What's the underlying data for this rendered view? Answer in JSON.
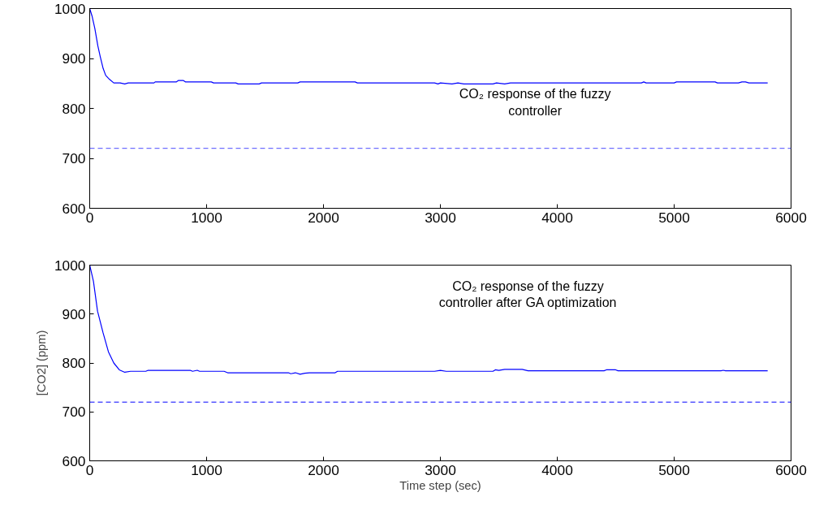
{
  "chart_data": [
    {
      "type": "line",
      "annotations": [
        "CO₂ response of the fuzzy controller"
      ],
      "xlim": [
        0,
        6000
      ],
      "ylim": [
        600,
        1000
      ],
      "xticks": [
        0,
        1000,
        2000,
        3000,
        4000,
        5000,
        6000
      ],
      "yticks": [
        600,
        700,
        800,
        900,
        1000
      ],
      "grid": false,
      "line_style": "solid",
      "series": [
        {
          "color": "#0000ff",
          "x": [
            0,
            20,
            44,
            70,
            90,
            115,
            137,
            170,
            206,
            260,
            300,
            330,
            550,
            560,
            740,
            760,
            800,
            820,
            1040,
            1060,
            1250,
            1270,
            1450,
            1470,
            1780,
            1800,
            2270,
            2290,
            2950,
            2980,
            3000,
            3100,
            3150,
            3200,
            3250,
            3450,
            3480,
            3550,
            3600,
            3620,
            4720,
            4740,
            4760,
            5000,
            5020,
            5350,
            5370,
            5550,
            5580,
            5610,
            5640,
            5800
          ],
          "values": [
            1000,
            985,
            960,
            925,
            904,
            880,
            866,
            858,
            851,
            851,
            849,
            851,
            851,
            853,
            853,
            856,
            856,
            853,
            853,
            851,
            851,
            849,
            849,
            851,
            851,
            853,
            853,
            851,
            851,
            849,
            851,
            849,
            851,
            849,
            849,
            849,
            851,
            849,
            851,
            851,
            851,
            853,
            851,
            851,
            853,
            853,
            851,
            851,
            853,
            853,
            851,
            851
          ]
        }
      ],
      "ref_lines": [
        {
          "axis": "y",
          "value": 720,
          "color": "#4d4dff",
          "line_style": "dashed"
        }
      ]
    },
    {
      "type": "line",
      "xlabel": "Time step (sec)",
      "ylabel": "[CO2] (ppm)",
      "annotations": [
        "CO₂ response of the fuzzy controller after GA optimization"
      ],
      "xlim": [
        0,
        6000
      ],
      "ylim": [
        600,
        1000
      ],
      "xticks": [
        0,
        1000,
        2000,
        3000,
        4000,
        5000,
        6000
      ],
      "yticks": [
        600,
        700,
        800,
        900,
        1000
      ],
      "grid": false,
      "line_style": "solid",
      "series": [
        {
          "color": "#0000ff",
          "x": [
            0,
            10,
            32,
            67,
            114,
            160,
            206,
            253,
            300,
            350,
            480,
            500,
            860,
            880,
            920,
            940,
            1150,
            1180,
            1700,
            1720,
            1760,
            1800,
            1840,
            1880,
            2100,
            2120,
            2150,
            2950,
            3000,
            3050,
            3150,
            3450,
            3470,
            3500,
            3550,
            3700,
            3750,
            4400,
            4420,
            4500,
            4520,
            5400,
            5420,
            5440,
            5800
          ],
          "values": [
            1000,
            990,
            967,
            906,
            862,
            823,
            800,
            786,
            781,
            783,
            783,
            785,
            785,
            783,
            785,
            783,
            783,
            780,
            780,
            778,
            780,
            777,
            779,
            780,
            780,
            783,
            783,
            783,
            785,
            783,
            783,
            783,
            786,
            785,
            787,
            787,
            784,
            784,
            786,
            786,
            784,
            784,
            785,
            784,
            784
          ]
        }
      ],
      "ref_lines": [
        {
          "axis": "y",
          "value": 720,
          "color": "#0000ff",
          "line_style": "dashed"
        }
      ]
    }
  ]
}
